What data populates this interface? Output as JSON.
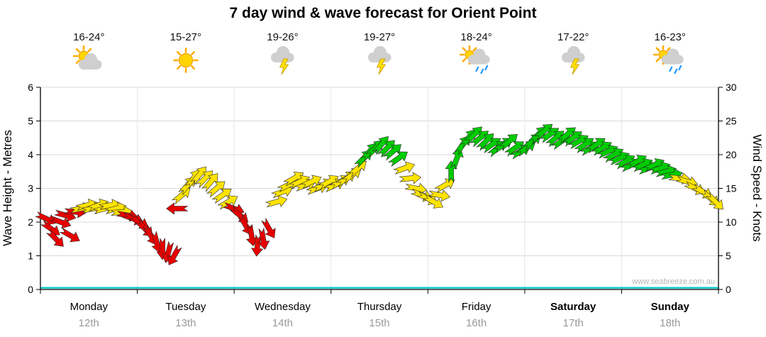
{
  "title": "7 day wind & wave forecast for Orient Point",
  "watermark": "www.seabreeze.com.au",
  "days": [
    {
      "name": "Monday",
      "date": "12th",
      "temp": "16-24°",
      "icon": "sun-cloud",
      "bold": false
    },
    {
      "name": "Tuesday",
      "date": "13th",
      "temp": "15-27°",
      "icon": "sunny",
      "bold": false
    },
    {
      "name": "Wednesday",
      "date": "14th",
      "temp": "19-26°",
      "icon": "storm",
      "bold": false
    },
    {
      "name": "Thursday",
      "date": "15th",
      "temp": "19-27°",
      "icon": "storm",
      "bold": false
    },
    {
      "name": "Friday",
      "date": "16th",
      "temp": "18-24°",
      "icon": "sun-rain",
      "bold": false
    },
    {
      "name": "Saturday",
      "date": "17th",
      "temp": "17-22°",
      "icon": "storm",
      "bold": true
    },
    {
      "name": "Sunday",
      "date": "18th",
      "temp": "16-23°",
      "icon": "sun-rain",
      "bold": true
    }
  ],
  "chart_data": {
    "type": "scatter",
    "subtype": "wind-direction-arrows",
    "left_axis": {
      "label": "Wave Height - Metres",
      "min": 0,
      "max": 6,
      "ticks": [
        0,
        1,
        2,
        3,
        4,
        5,
        6
      ]
    },
    "right_axis": {
      "label": "Wind Speed - Knots",
      "min": 0,
      "max": 30,
      "ticks": [
        0,
        5,
        10,
        15,
        20,
        25,
        30
      ]
    },
    "x_range_days": [
      0,
      7
    ],
    "grid": true,
    "colors": {
      "r": "#e60000",
      "y": "#ffe400",
      "g": "#00cc00",
      "wave": "#00c8c8",
      "grid": "#d9d9d9",
      "axis": "#000000"
    },
    "wave_height_series": {
      "x_days": [
        0,
        7
      ],
      "values_m": [
        0.05,
        0.05
      ]
    },
    "arrow_format": [
      "day_offset",
      "wind_knots",
      "direction_deg",
      "color_code"
    ],
    "arrows": [
      [
        0.06,
        10.5,
        115,
        "r"
      ],
      [
        0.11,
        9,
        125,
        "r"
      ],
      [
        0.16,
        7.5,
        135,
        "r"
      ],
      [
        0.21,
        10,
        110,
        "r"
      ],
      [
        0.26,
        11,
        105,
        "r"
      ],
      [
        0.31,
        8,
        120,
        "r"
      ],
      [
        0.36,
        11.5,
        95,
        "r"
      ],
      [
        0.42,
        12,
        80,
        "y"
      ],
      [
        0.48,
        12.5,
        75,
        "y"
      ],
      [
        0.54,
        12,
        80,
        "y"
      ],
      [
        0.6,
        12.5,
        70,
        "y"
      ],
      [
        0.66,
        12,
        75,
        "y"
      ],
      [
        0.72,
        12.5,
        80,
        "y"
      ],
      [
        0.78,
        12,
        75,
        "y"
      ],
      [
        0.84,
        11.5,
        85,
        "y"
      ],
      [
        0.9,
        11,
        100,
        "r"
      ],
      [
        0.96,
        10.5,
        110,
        "r"
      ],
      [
        1.02,
        10,
        120,
        "r"
      ],
      [
        1.08,
        9,
        135,
        "r"
      ],
      [
        1.14,
        8,
        150,
        "r"
      ],
      [
        1.2,
        7,
        165,
        "r"
      ],
      [
        1.26,
        6,
        180,
        "r"
      ],
      [
        1.32,
        5.5,
        195,
        "r"
      ],
      [
        1.38,
        5,
        210,
        "r"
      ],
      [
        1.41,
        12,
        270,
        "r"
      ],
      [
        1.46,
        14,
        50,
        "y"
      ],
      [
        1.52,
        15.5,
        40,
        "y"
      ],
      [
        1.58,
        16.5,
        35,
        "y"
      ],
      [
        1.64,
        17,
        40,
        "y"
      ],
      [
        1.7,
        16.5,
        45,
        "y"
      ],
      [
        1.76,
        16,
        40,
        "y"
      ],
      [
        1.82,
        15,
        50,
        "y"
      ],
      [
        1.88,
        14,
        55,
        "y"
      ],
      [
        1.94,
        13,
        60,
        "y"
      ],
      [
        2.0,
        12,
        110,
        "r"
      ],
      [
        2.06,
        11,
        130,
        "r"
      ],
      [
        2.12,
        9.5,
        150,
        "r"
      ],
      [
        2.18,
        8,
        170,
        "r"
      ],
      [
        2.24,
        6.5,
        185,
        "r"
      ],
      [
        2.3,
        7.5,
        170,
        "r"
      ],
      [
        2.36,
        9,
        150,
        "r"
      ],
      [
        2.44,
        13,
        75,
        "y"
      ],
      [
        2.5,
        14.5,
        70,
        "y"
      ],
      [
        2.56,
        15.5,
        65,
        "y"
      ],
      [
        2.62,
        16.5,
        60,
        "y"
      ],
      [
        2.68,
        16,
        65,
        "y"
      ],
      [
        2.74,
        15.5,
        70,
        "y"
      ],
      [
        2.8,
        16,
        65,
        "y"
      ],
      [
        2.86,
        15,
        70,
        "y"
      ],
      [
        2.92,
        15.5,
        65,
        "y"
      ],
      [
        2.98,
        16,
        60,
        "y"
      ],
      [
        3.04,
        15.5,
        65,
        "y"
      ],
      [
        3.1,
        16,
        60,
        "y"
      ],
      [
        3.16,
        16.5,
        55,
        "y"
      ],
      [
        3.22,
        17,
        55,
        "y"
      ],
      [
        3.28,
        18,
        50,
        "y"
      ],
      [
        3.34,
        19.5,
        45,
        "g"
      ],
      [
        3.4,
        20.5,
        40,
        "g"
      ],
      [
        3.46,
        21,
        45,
        "g"
      ],
      [
        3.52,
        21.5,
        40,
        "g"
      ],
      [
        3.58,
        21,
        45,
        "g"
      ],
      [
        3.64,
        20.5,
        50,
        "g"
      ],
      [
        3.7,
        19.5,
        55,
        "g"
      ],
      [
        3.76,
        18,
        70,
        "y"
      ],
      [
        3.82,
        16.5,
        85,
        "y"
      ],
      [
        3.88,
        15,
        100,
        "y"
      ],
      [
        3.94,
        14,
        110,
        "y"
      ],
      [
        4.0,
        13.5,
        115,
        "y"
      ],
      [
        4.06,
        13,
        120,
        "y"
      ],
      [
        4.12,
        14,
        100,
        "y"
      ],
      [
        4.18,
        15.5,
        60,
        "y"
      ],
      [
        4.24,
        17.5,
        0,
        "g"
      ],
      [
        4.3,
        19.5,
        20,
        "g"
      ],
      [
        4.36,
        21.5,
        35,
        "g"
      ],
      [
        4.42,
        22.5,
        40,
        "g"
      ],
      [
        4.48,
        23,
        45,
        "g"
      ],
      [
        4.54,
        22.5,
        50,
        "g"
      ],
      [
        4.6,
        22,
        45,
        "g"
      ],
      [
        4.66,
        21.5,
        55,
        "g"
      ],
      [
        4.72,
        21,
        50,
        "g"
      ],
      [
        4.78,
        21.5,
        55,
        "g"
      ],
      [
        4.84,
        22,
        50,
        "g"
      ],
      [
        4.9,
        21,
        55,
        "g"
      ],
      [
        4.96,
        20.5,
        60,
        "g"
      ],
      [
        5.02,
        21,
        55,
        "g"
      ],
      [
        5.08,
        22,
        50,
        "g"
      ],
      [
        5.14,
        23,
        45,
        "g"
      ],
      [
        5.2,
        23.5,
        50,
        "g"
      ],
      [
        5.26,
        23,
        55,
        "g"
      ],
      [
        5.32,
        22.5,
        50,
        "g"
      ],
      [
        5.38,
        22,
        55,
        "g"
      ],
      [
        5.44,
        23,
        50,
        "g"
      ],
      [
        5.5,
        22.5,
        55,
        "g"
      ],
      [
        5.56,
        22,
        60,
        "g"
      ],
      [
        5.62,
        21.5,
        55,
        "g"
      ],
      [
        5.68,
        21,
        60,
        "g"
      ],
      [
        5.74,
        21.5,
        55,
        "g"
      ],
      [
        5.8,
        21,
        60,
        "g"
      ],
      [
        5.86,
        20.5,
        65,
        "g"
      ],
      [
        5.92,
        20,
        60,
        "g"
      ],
      [
        5.98,
        19.5,
        65,
        "g"
      ],
      [
        6.04,
        19,
        60,
        "g"
      ],
      [
        6.1,
        18.5,
        65,
        "g"
      ],
      [
        6.16,
        19,
        60,
        "g"
      ],
      [
        6.22,
        18.5,
        65,
        "g"
      ],
      [
        6.28,
        18,
        70,
        "g"
      ],
      [
        6.34,
        18.5,
        65,
        "g"
      ],
      [
        6.4,
        18,
        70,
        "g"
      ],
      [
        6.46,
        17.5,
        75,
        "g"
      ],
      [
        6.52,
        17,
        80,
        "g"
      ],
      [
        6.6,
        16.5,
        95,
        "y"
      ],
      [
        6.68,
        16,
        105,
        "y"
      ],
      [
        6.76,
        15,
        115,
        "y"
      ],
      [
        6.84,
        14.5,
        120,
        "y"
      ],
      [
        6.92,
        13.5,
        130,
        "y"
      ],
      [
        6.97,
        13,
        135,
        "y"
      ]
    ]
  }
}
